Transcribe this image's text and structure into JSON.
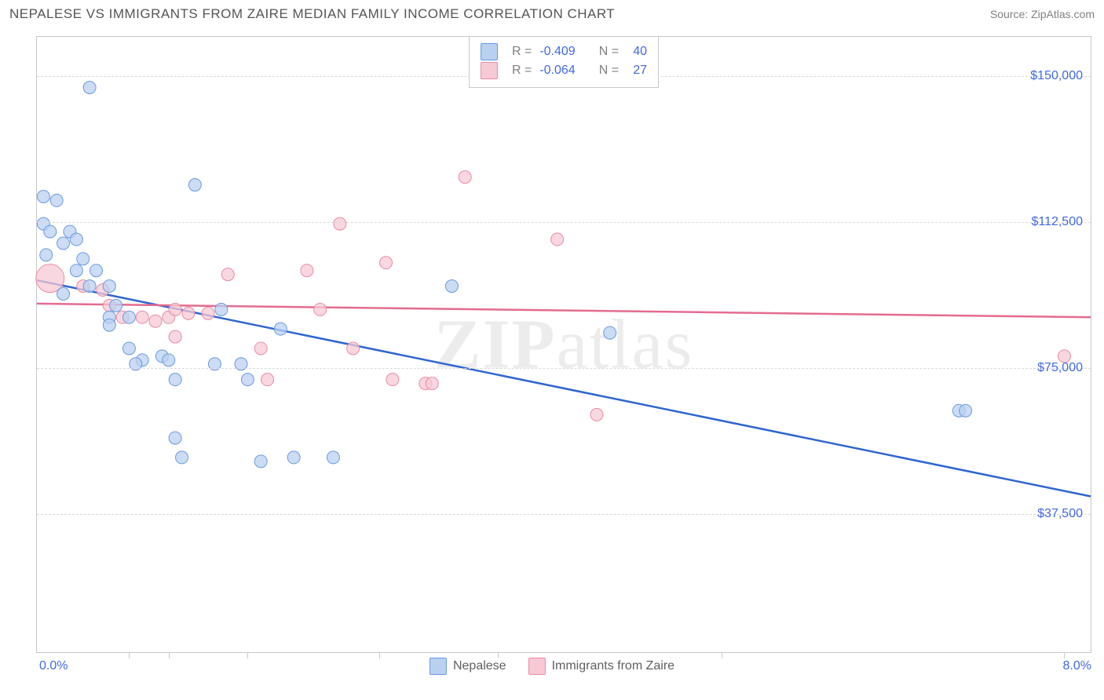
{
  "header": {
    "title": "NEPALESE VS IMMIGRANTS FROM ZAIRE MEDIAN FAMILY INCOME CORRELATION CHART",
    "source_label": "Source: ZipAtlas.com"
  },
  "watermark": "ZIPatlas",
  "chart": {
    "type": "scatter",
    "background_color": "#ffffff",
    "border_color": "#c8c8c8",
    "grid_color": "#d8d8d8",
    "ylabel": "Median Family Income",
    "ylabel_color": "#555555",
    "label_fontsize": 16,
    "xlim": [
      0.0,
      8.0
    ],
    "x_left_label": "0.0%",
    "x_right_label": "8.0%",
    "xtick_positions": [
      0.7,
      1.0,
      1.6,
      2.6,
      3.5,
      5.2,
      7.8
    ],
    "ylim": [
      2000,
      160000
    ],
    "ygrid": [
      {
        "value": 37500,
        "label": "$37,500"
      },
      {
        "value": 75000,
        "label": "$75,000"
      },
      {
        "value": 112500,
        "label": "$112,500"
      },
      {
        "value": 150000,
        "label": "$150,000"
      }
    ],
    "axis_label_color": "#4169e1",
    "series": [
      {
        "name": "Nepalese",
        "fill_color": "#b9d0f0",
        "stroke_color": "#6a9ae0",
        "line_color": "#2f66d0",
        "line_width": 2.5,
        "marker_radius": 8,
        "marker_opacity": 0.75,
        "R": "-0.409",
        "N": "40",
        "regression": {
          "y_at_xmin": 97500,
          "y_at_xmax": 42000
        },
        "points": [
          {
            "x": 0.05,
            "y": 119000
          },
          {
            "x": 0.05,
            "y": 112000
          },
          {
            "x": 0.1,
            "y": 110000
          },
          {
            "x": 0.07,
            "y": 104000
          },
          {
            "x": 0.15,
            "y": 118000
          },
          {
            "x": 0.25,
            "y": 110000
          },
          {
            "x": 0.2,
            "y": 107000
          },
          {
            "x": 0.3,
            "y": 108000
          },
          {
            "x": 0.4,
            "y": 147000
          },
          {
            "x": 0.35,
            "y": 103000
          },
          {
            "x": 0.3,
            "y": 100000
          },
          {
            "x": 0.45,
            "y": 100000
          },
          {
            "x": 0.55,
            "y": 96000
          },
          {
            "x": 0.55,
            "y": 88000
          },
          {
            "x": 0.6,
            "y": 91000
          },
          {
            "x": 0.7,
            "y": 88000
          },
          {
            "x": 0.7,
            "y": 80000
          },
          {
            "x": 0.8,
            "y": 77000
          },
          {
            "x": 0.75,
            "y": 76000
          },
          {
            "x": 0.95,
            "y": 78000
          },
          {
            "x": 1.0,
            "y": 77000
          },
          {
            "x": 1.05,
            "y": 72000
          },
          {
            "x": 1.05,
            "y": 57000
          },
          {
            "x": 1.1,
            "y": 52000
          },
          {
            "x": 1.2,
            "y": 122000
          },
          {
            "x": 1.35,
            "y": 76000
          },
          {
            "x": 1.4,
            "y": 90000
          },
          {
            "x": 1.55,
            "y": 76000
          },
          {
            "x": 1.6,
            "y": 72000
          },
          {
            "x": 1.7,
            "y": 51000
          },
          {
            "x": 1.85,
            "y": 85000
          },
          {
            "x": 1.95,
            "y": 52000
          },
          {
            "x": 2.25,
            "y": 52000
          },
          {
            "x": 3.15,
            "y": 96000
          },
          {
            "x": 4.35,
            "y": 84000
          },
          {
            "x": 7.0,
            "y": 64000
          },
          {
            "x": 7.05,
            "y": 64000
          },
          {
            "x": 0.4,
            "y": 96000
          },
          {
            "x": 0.2,
            "y": 94000
          },
          {
            "x": 0.55,
            "y": 86000
          }
        ]
      },
      {
        "name": "Immigrants from Zaire",
        "fill_color": "#f7c9d5",
        "stroke_color": "#e88ba5",
        "line_color": "#e36c8f",
        "line_width": 2.5,
        "marker_radius": 8,
        "marker_opacity": 0.75,
        "R": "-0.064",
        "N": "27",
        "regression": {
          "y_at_xmin": 91500,
          "y_at_xmax": 88000
        },
        "points": [
          {
            "x": 0.1,
            "y": 98000,
            "r": 18
          },
          {
            "x": 0.35,
            "y": 96000
          },
          {
            "x": 0.55,
            "y": 91000
          },
          {
            "x": 0.65,
            "y": 88000
          },
          {
            "x": 0.8,
            "y": 88000
          },
          {
            "x": 0.9,
            "y": 87000
          },
          {
            "x": 1.0,
            "y": 88000
          },
          {
            "x": 1.05,
            "y": 90000
          },
          {
            "x": 1.05,
            "y": 83000
          },
          {
            "x": 1.15,
            "y": 89000
          },
          {
            "x": 1.3,
            "y": 89000
          },
          {
            "x": 1.45,
            "y": 99000
          },
          {
            "x": 1.7,
            "y": 80000
          },
          {
            "x": 1.75,
            "y": 72000
          },
          {
            "x": 2.05,
            "y": 100000
          },
          {
            "x": 2.15,
            "y": 90000
          },
          {
            "x": 2.3,
            "y": 112000
          },
          {
            "x": 2.4,
            "y": 80000
          },
          {
            "x": 2.65,
            "y": 102000
          },
          {
            "x": 2.7,
            "y": 72000
          },
          {
            "x": 2.95,
            "y": 71000
          },
          {
            "x": 3.0,
            "y": 71000
          },
          {
            "x": 3.25,
            "y": 124000
          },
          {
            "x": 3.95,
            "y": 108000
          },
          {
            "x": 4.25,
            "y": 63000
          },
          {
            "x": 7.8,
            "y": 78000
          },
          {
            "x": 0.5,
            "y": 95000
          }
        ]
      }
    ]
  },
  "top_legend": {
    "R_label": "R =",
    "N_label": "N ="
  },
  "bottom_legend": {
    "items": [
      "Nepalese",
      "Immigrants from Zaire"
    ]
  }
}
